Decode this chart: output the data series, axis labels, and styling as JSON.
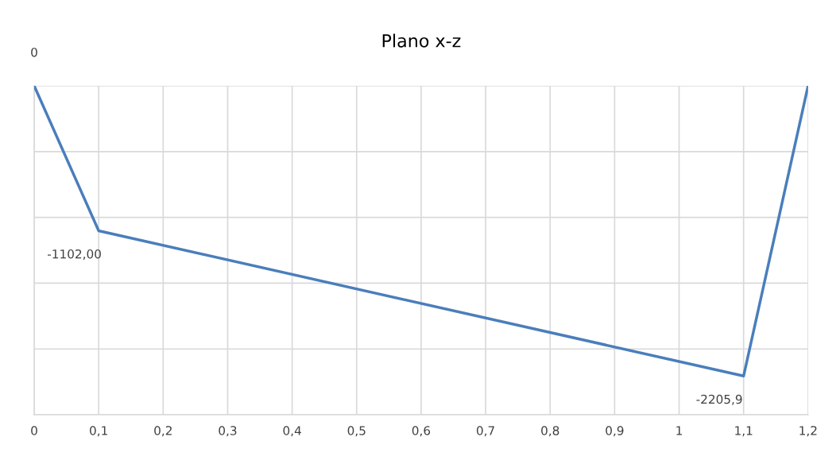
{
  "chart_data": {
    "type": "line",
    "title": "Plano x-z",
    "x": [
      0,
      0.1,
      1.1,
      1.2
    ],
    "series": [
      {
        "color": "#4a7ebb",
        "values": [
          0,
          -1102.0,
          -2205.9,
          0
        ],
        "value_labels": [
          "0",
          "-1102,00",
          "-2205,9",
          null
        ]
      }
    ],
    "xlim": [
      0,
      1.2
    ],
    "xticks": [
      0,
      {
        "value": 0.1,
        "label": "0,1"
      },
      {
        "value": 0.2,
        "label": "0,2"
      },
      {
        "value": 0.3,
        "label": "0,3"
      },
      {
        "value": 0.4,
        "label": "0,4"
      },
      {
        "value": 0.5,
        "label": "0,5"
      },
      {
        "value": 0.6,
        "label": "0,6"
      },
      {
        "value": 0.7,
        "label": "0,7"
      },
      {
        "value": 0.8,
        "label": "0,8"
      },
      {
        "value": 0.9,
        "label": "0,9"
      },
      1,
      {
        "value": 1.1,
        "label": "1,1"
      },
      {
        "value": 1.2,
        "label": "1,2"
      }
    ],
    "ylim": [
      -2500,
      0
    ],
    "yticks": [
      {
        "value": -2500,
        "label": null
      },
      {
        "value": -2000,
        "label": null
      },
      {
        "value": -1500,
        "label": null
      },
      {
        "value": -1000,
        "label": null
      },
      {
        "value": -500,
        "label": null
      },
      {
        "value": 0,
        "label": null
      }
    ],
    "tick_labels": "x",
    "grid": true,
    "marker": "none",
    "line_style": "solid"
  }
}
